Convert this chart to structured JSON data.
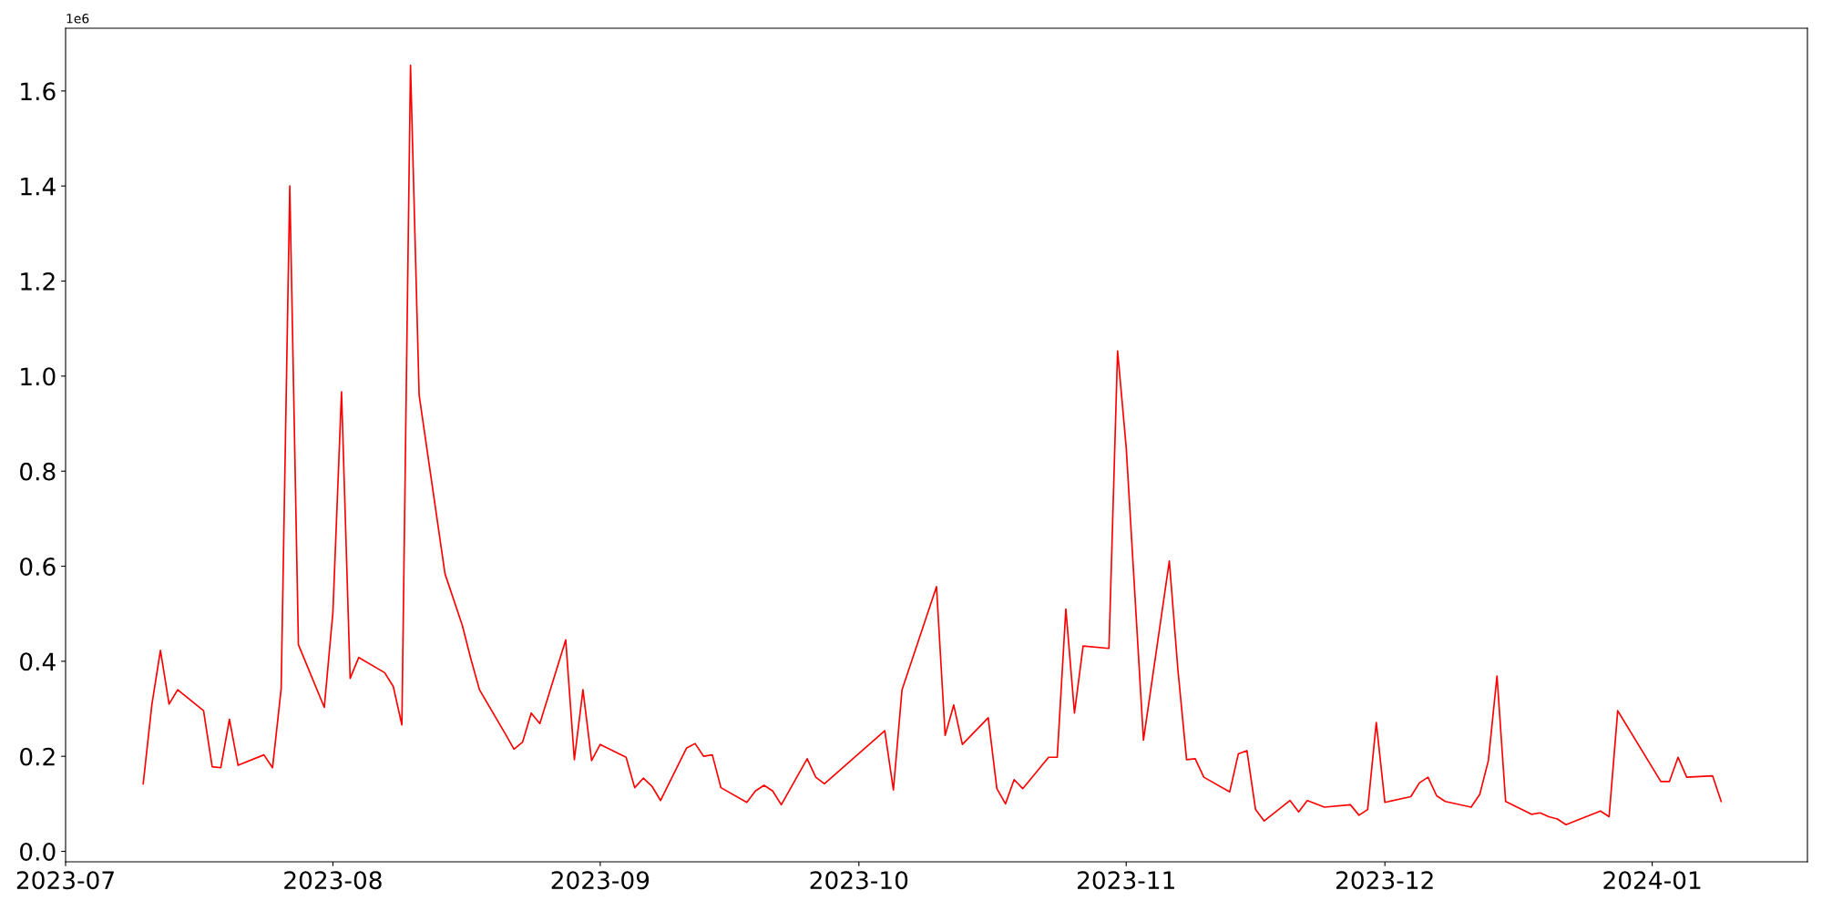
{
  "chart_data": {
    "type": "line",
    "x": [
      "2023-07-10",
      "2023-07-11",
      "2023-07-12",
      "2023-07-13",
      "2023-07-14",
      "2023-07-17",
      "2023-07-18",
      "2023-07-19",
      "2023-07-20",
      "2023-07-21",
      "2023-07-24",
      "2023-07-25",
      "2023-07-26",
      "2023-07-27",
      "2023-07-28",
      "2023-07-31",
      "2023-08-01",
      "2023-08-02",
      "2023-08-03",
      "2023-08-04",
      "2023-08-07",
      "2023-08-08",
      "2023-08-09",
      "2023-08-10",
      "2023-08-11",
      "2023-08-14",
      "2023-08-16",
      "2023-08-17",
      "2023-08-18",
      "2023-08-21",
      "2023-08-22",
      "2023-08-23",
      "2023-08-24",
      "2023-08-25",
      "2023-08-28",
      "2023-08-29",
      "2023-08-30",
      "2023-08-31",
      "2023-09-01",
      "2023-09-04",
      "2023-09-05",
      "2023-09-06",
      "2023-09-07",
      "2023-09-08",
      "2023-09-11",
      "2023-09-12",
      "2023-09-13",
      "2023-09-14",
      "2023-09-15",
      "2023-09-18",
      "2023-09-19",
      "2023-09-20",
      "2023-09-21",
      "2023-09-22",
      "2023-09-25",
      "2023-09-26",
      "2023-09-27",
      "2023-10-04",
      "2023-10-05",
      "2023-10-06",
      "2023-10-10",
      "2023-10-11",
      "2023-10-12",
      "2023-10-13",
      "2023-10-16",
      "2023-10-17",
      "2023-10-18",
      "2023-10-19",
      "2023-10-20",
      "2023-10-23",
      "2023-10-24",
      "2023-10-25",
      "2023-10-26",
      "2023-10-27",
      "2023-10-30",
      "2023-10-31",
      "2023-11-01",
      "2023-11-03",
      "2023-11-06",
      "2023-11-07",
      "2023-11-08",
      "2023-11-09",
      "2023-11-10",
      "2023-11-13",
      "2023-11-14",
      "2023-11-15",
      "2023-11-16",
      "2023-11-17",
      "2023-11-20",
      "2023-11-21",
      "2023-11-22",
      "2023-11-24",
      "2023-11-27",
      "2023-11-28",
      "2023-11-29",
      "2023-11-30",
      "2023-12-01",
      "2023-12-04",
      "2023-12-05",
      "2023-12-06",
      "2023-12-07",
      "2023-12-08",
      "2023-12-11",
      "2023-12-12",
      "2023-12-13",
      "2023-12-14",
      "2023-12-15",
      "2023-12-18",
      "2023-12-19",
      "2023-12-20",
      "2023-12-21",
      "2023-12-22",
      "2023-12-26",
      "2023-12-27",
      "2023-12-28",
      "2024-01-02",
      "2024-01-03",
      "2024-01-04",
      "2024-01-05",
      "2024-01-08",
      "2024-01-09"
    ],
    "series": [
      {
        "color": "#ff0000",
        "values": [
          0.142,
          0.308,
          0.423,
          0.31,
          0.34,
          0.296,
          0.178,
          0.176,
          0.278,
          0.181,
          0.203,
          0.176,
          0.342,
          1.4,
          0.435,
          0.303,
          0.503,
          0.967,
          0.364,
          0.408,
          0.376,
          0.347,
          0.266,
          1.654,
          0.96,
          0.584,
          0.476,
          0.405,
          0.34,
          0.247,
          0.215,
          0.23,
          0.291,
          0.269,
          0.445,
          0.193,
          0.34,
          0.191,
          0.225,
          0.198,
          0.134,
          0.154,
          0.137,
          0.107,
          0.217,
          0.227,
          0.2,
          0.203,
          0.134,
          0.103,
          0.127,
          0.139,
          0.127,
          0.098,
          0.195,
          0.156,
          0.142,
          0.254,
          0.129,
          0.34,
          0.557,
          0.244,
          0.308,
          0.225,
          0.281,
          0.132,
          0.1,
          0.151,
          0.132,
          0.198,
          0.198,
          0.51,
          0.291,
          0.432,
          0.427,
          1.053,
          0.85,
          0.234,
          0.611,
          0.381,
          0.193,
          0.195,
          0.156,
          0.125,
          0.205,
          0.212,
          0.088,
          0.064,
          0.107,
          0.083,
          0.107,
          0.093,
          0.098,
          0.076,
          0.088,
          0.271,
          0.103,
          0.115,
          0.144,
          0.156,
          0.117,
          0.105,
          0.093,
          0.12,
          0.191,
          0.369,
          0.105,
          0.078,
          0.081,
          0.073,
          0.068,
          0.056,
          0.085,
          0.073,
          0.296,
          0.147,
          0.147,
          0.198,
          0.156,
          0.159,
          0.105
        ]
      }
    ],
    "xlim": [
      "2023-07-01",
      "2024-01-19"
    ],
    "xticks": [
      {
        "value": "2023-07-01",
        "label": "2023-07"
      },
      {
        "value": "2023-08-01",
        "label": "2023-08"
      },
      {
        "value": "2023-09-01",
        "label": "2023-09"
      },
      {
        "value": "2023-10-01",
        "label": "2023-10"
      },
      {
        "value": "2023-11-01",
        "label": "2023-11"
      },
      {
        "value": "2023-12-01",
        "label": "2023-12"
      },
      {
        "value": "2024-01-01",
        "label": "2024-01"
      }
    ],
    "ylim": [
      -0.022,
      1.732
    ],
    "yticks": [
      {
        "value": 0,
        "label": "0.0"
      },
      0.2,
      0.4,
      0.6,
      0.8,
      {
        "value": 1,
        "label": "1.0"
      },
      1.2,
      1.4,
      1.6
    ],
    "annotations": [
      "1e6"
    ],
    "grid": false,
    "legend": false,
    "line_style": "solid",
    "marker": "none"
  }
}
